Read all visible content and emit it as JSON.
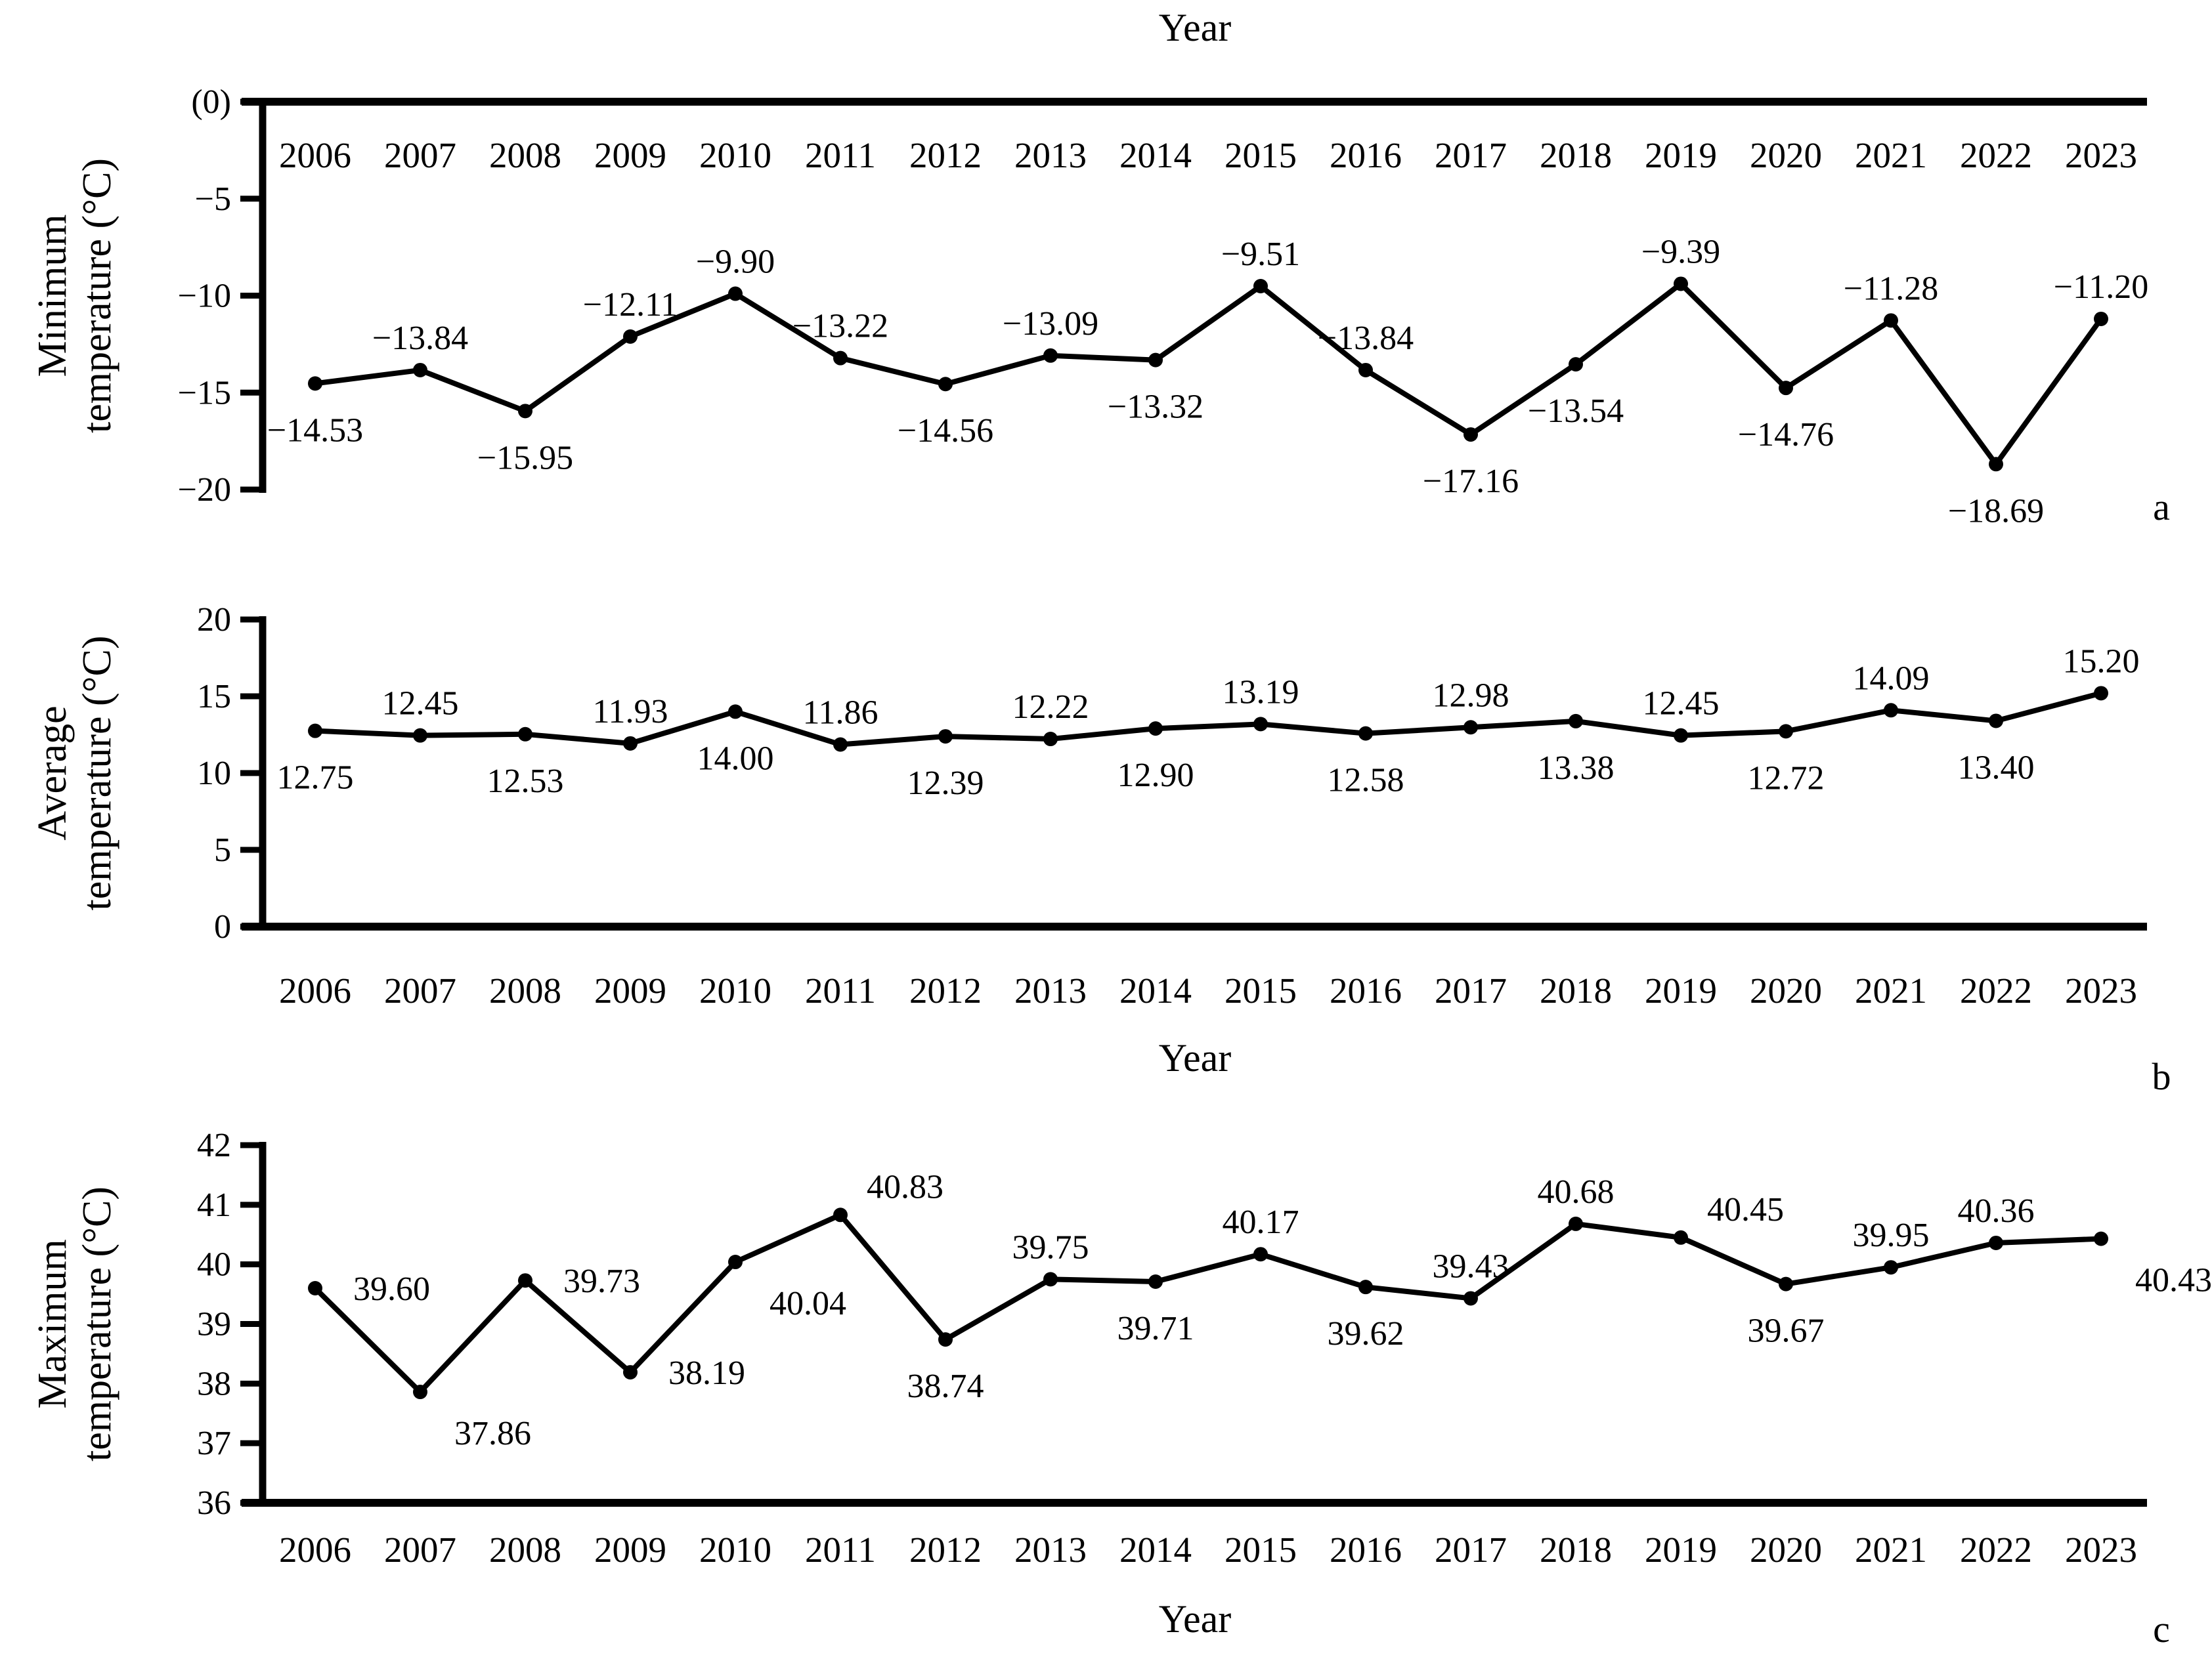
{
  "figure_title": "Annual temperature trends figure",
  "colors": {
    "foreground": "#000000",
    "background": "#ffffff"
  },
  "chart_data": [
    {
      "type": "line",
      "panel_letter": "a",
      "xlabel": "Year",
      "x_axis_position": "top",
      "ylabel": "Minimum temperature (°C)",
      "ylabel_lines": [
        "Minimum",
        "temperature (°C)"
      ],
      "ylim": [
        -20,
        0
      ],
      "grid": false,
      "legend": "none",
      "y_ticks": [
        0,
        -5,
        -10,
        -15,
        -20
      ],
      "y_tick_labels": [
        "(0)",
        "−5",
        "−10",
        "−15",
        "−20"
      ],
      "categories": [
        "2006",
        "2007",
        "2008",
        "2009",
        "2010",
        "2011",
        "2012",
        "2013",
        "2014",
        "2015",
        "2016",
        "2017",
        "2018",
        "2019",
        "2020",
        "2021",
        "2022",
        "2023"
      ],
      "values": [
        -14.53,
        -13.84,
        -15.95,
        -12.11,
        -9.9,
        -13.22,
        -14.56,
        -13.09,
        -13.32,
        -9.51,
        -13.84,
        -17.16,
        -13.54,
        -9.39,
        -14.76,
        -11.28,
        -18.69,
        -11.2
      ],
      "data_labels": [
        "−14.53",
        "−13.84",
        "−15.95",
        "−12.11",
        "−9.90",
        "−13.22",
        "−14.56",
        "−13.09",
        "−13.32",
        "−9.51",
        "−13.84",
        "−17.16",
        "−13.54",
        "−9.39",
        "−14.76",
        "−11.28",
        "−18.69",
        "−11.20"
      ],
      "label_pos": [
        "below",
        "above",
        "below",
        "above",
        "above",
        "above",
        "below",
        "above",
        "below",
        "above",
        "above",
        "below",
        "below",
        "above",
        "below",
        "above",
        "below",
        "above"
      ]
    },
    {
      "type": "line",
      "panel_letter": "b",
      "xlabel": "Year",
      "x_axis_position": "bottom",
      "ylabel": "Average temperature (°C)",
      "ylabel_lines": [
        "Average",
        "temperature (°C)"
      ],
      "ylim": [
        0,
        20
      ],
      "grid": false,
      "legend": "none",
      "y_ticks": [
        20,
        15,
        10,
        5,
        0
      ],
      "y_tick_labels": [
        "20",
        "15",
        "10",
        "5",
        "0"
      ],
      "categories": [
        "2006",
        "2007",
        "2008",
        "2009",
        "2010",
        "2011",
        "2012",
        "2013",
        "2014",
        "2015",
        "2016",
        "2017",
        "2018",
        "2019",
        "2020",
        "2021",
        "2022",
        "2023"
      ],
      "values": [
        12.75,
        12.45,
        12.53,
        11.93,
        14.0,
        11.86,
        12.39,
        12.22,
        12.9,
        13.19,
        12.58,
        12.98,
        13.38,
        12.45,
        12.72,
        14.09,
        13.4,
        15.2
      ],
      "data_labels": [
        "12.75",
        "12.45",
        "12.53",
        "11.93",
        "14.00",
        "11.86",
        "12.39",
        "12.22",
        "12.90",
        "13.19",
        "12.58",
        "12.98",
        "13.38",
        "12.45",
        "12.72",
        "14.09",
        "13.40",
        "15.20"
      ],
      "label_pos": [
        "below",
        "above",
        "below",
        "above",
        "below",
        "above",
        "below",
        "above",
        "below",
        "above",
        "below",
        "above",
        "below",
        "above",
        "below",
        "above",
        "below",
        "above"
      ]
    },
    {
      "type": "line",
      "panel_letter": "c",
      "xlabel": "Year",
      "x_axis_position": "bottom",
      "ylabel": "Maximum temperature (°C)",
      "ylabel_lines": [
        "Maximum",
        "temperature (°C)"
      ],
      "ylim": [
        36,
        42
      ],
      "grid": false,
      "legend": "none",
      "y_ticks": [
        42,
        41,
        40,
        39,
        38,
        37,
        36
      ],
      "y_tick_labels": [
        "42",
        "41",
        "40",
        "39",
        "38",
        "37",
        "36"
      ],
      "categories": [
        "2006",
        "2007",
        "2008",
        "2009",
        "2010",
        "2011",
        "2012",
        "2013",
        "2014",
        "2015",
        "2016",
        "2017",
        "2018",
        "2019",
        "2020",
        "2021",
        "2022",
        "2023"
      ],
      "values": [
        39.6,
        37.86,
        39.73,
        38.19,
        40.04,
        40.83,
        38.74,
        39.75,
        39.71,
        40.17,
        39.62,
        39.43,
        40.68,
        40.45,
        39.67,
        39.95,
        40.36,
        40.43
      ],
      "data_labels": [
        "39.60",
        "37.86",
        "39.73",
        "38.19",
        "40.04",
        "40.83",
        "38.74",
        "39.75",
        "39.71",
        "40.17",
        "39.62",
        "39.43",
        "40.68",
        "40.45",
        "39.67",
        "39.95",
        "40.36",
        "40.43"
      ],
      "label_pos": [
        "right",
        "right-below",
        "right",
        "right",
        "right-below",
        "right-above",
        "below",
        "above",
        "below",
        "above",
        "below",
        "above",
        "above",
        "right-above",
        "below",
        "above",
        "above",
        "right-below"
      ]
    }
  ]
}
